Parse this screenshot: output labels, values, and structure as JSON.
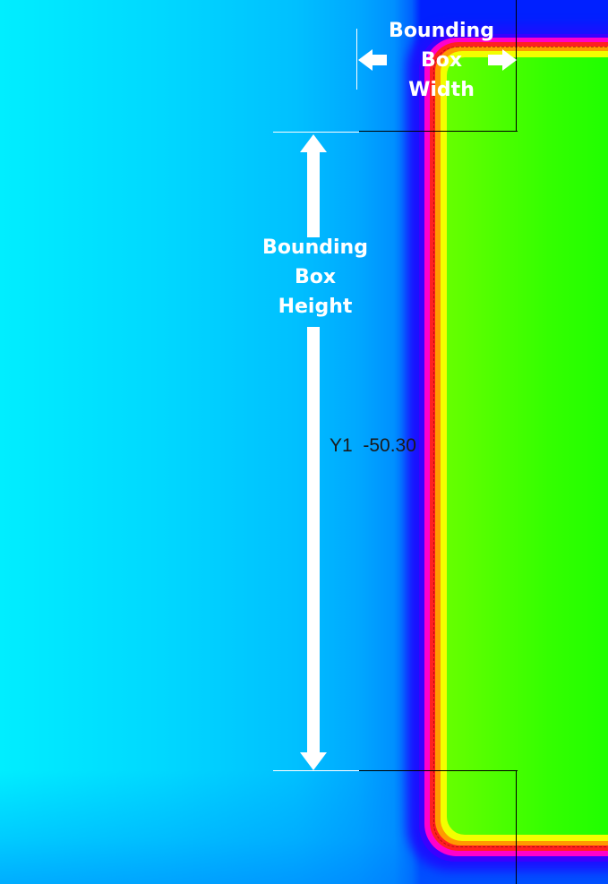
{
  "annotations": {
    "width_label": [
      "Bounding",
      "Box",
      "Width"
    ],
    "height_label": [
      "Bounding",
      "Box",
      "Height"
    ]
  },
  "readout": {
    "label": "Y1",
    "value": "-50.30"
  },
  "colors": {
    "background": "#00e8ff",
    "edge_blue": "#1a10ff",
    "edge_magenta": "#ff00cc",
    "edge_red": "#ff2020",
    "edge_orange": "#ff9a00",
    "edge_yellow": "#f2ff00",
    "interior_green": "#00ff00",
    "annotation": "#ffffff",
    "bounding_box_line": "#000000"
  }
}
